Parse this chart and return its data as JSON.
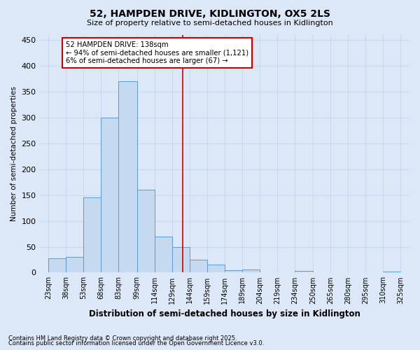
{
  "title": "52, HAMPDEN DRIVE, KIDLINGTON, OX5 2LS",
  "subtitle": "Size of property relative to semi-detached houses in Kidlington",
  "xlabel": "Distribution of semi-detached houses by size in Kidlington",
  "ylabel": "Number of semi-detached properties",
  "footnote1": "Contains HM Land Registry data © Crown copyright and database right 2025.",
  "footnote2": "Contains public sector information licensed under the Open Government Licence v3.0.",
  "annotation_line1": "52 HAMPDEN DRIVE: 138sqm",
  "annotation_line2": "← 94% of semi-detached houses are smaller (1,121)",
  "annotation_line3": "6% of semi-detached houses are larger (67) →",
  "property_size": 138,
  "bin_edges": [
    23,
    38,
    53,
    68,
    83,
    99,
    114,
    129,
    144,
    159,
    174,
    189,
    204,
    219,
    234,
    250,
    265,
    280,
    295,
    310,
    325
  ],
  "bin_labels": [
    "23sqm",
    "38sqm",
    "53sqm",
    "68sqm",
    "83sqm",
    "99sqm",
    "114sqm",
    "129sqm",
    "144sqm",
    "159sqm",
    "174sqm",
    "189sqm",
    "204sqm",
    "219sqm",
    "234sqm",
    "250sqm",
    "265sqm",
    "280sqm",
    "295sqm",
    "310sqm",
    "325sqm"
  ],
  "counts": [
    28,
    30,
    145,
    300,
    370,
    160,
    70,
    50,
    25,
    15,
    5,
    6,
    0,
    0,
    3,
    0,
    0,
    0,
    0,
    2
  ],
  "bar_color": "#c5d9f0",
  "bar_edge_color": "#5b9bd5",
  "vline_color": "#cc0000",
  "annotation_box_edge_color": "#cc0000",
  "annotation_box_face_color": "#ffffff",
  "grid_color": "#c8d8ee",
  "background_color": "#dce8f8",
  "ylim": [
    0,
    460
  ],
  "yticks": [
    0,
    50,
    100,
    150,
    200,
    250,
    300,
    350,
    400,
    450
  ]
}
